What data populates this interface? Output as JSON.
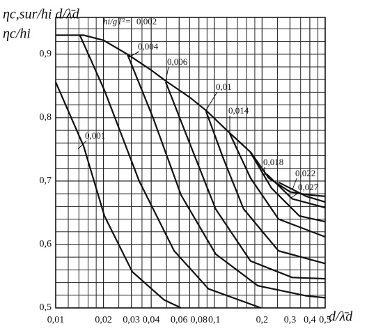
{
  "chart_data": {
    "type": "line",
    "y_label_top": "ηc,sur/hi d/λ̄d",
    "y_label": "ηc/hi",
    "param_label": "hi/gT²=",
    "x_label": "d/λ̄d",
    "log_x": true,
    "grid": true,
    "color": "#111111",
    "xlim": [
      0.01,
      0.5
    ],
    "ylim": [
      0.5,
      0.958
    ],
    "xticks": [
      {
        "value": 0.01,
        "label": "0,01"
      },
      {
        "value": 0.02,
        "label": "0,02"
      },
      {
        "value": 0.03,
        "label": "0,03"
      },
      {
        "value": 0.04,
        "label": "0,04"
      },
      {
        "value": 0.06,
        "label": "0,06"
      },
      {
        "value": 0.08,
        "label": "0,08"
      },
      {
        "value": 0.1,
        "label": "0,1"
      },
      {
        "value": 0.2,
        "label": "0,2"
      },
      {
        "value": 0.3,
        "label": "0,3"
      },
      {
        "value": 0.4,
        "label": "0,4"
      },
      {
        "value": 0.5,
        "label": "0,5"
      }
    ],
    "yticks": [
      {
        "value": 0.5,
        "label": "0,5"
      },
      {
        "value": 0.6,
        "label": "0,6"
      },
      {
        "value": 0.7,
        "label": "0,7"
      },
      {
        "value": 0.8,
        "label": "0,8"
      },
      {
        "value": 0.9,
        "label": "0,9"
      }
    ],
    "xgrid": [
      0.012,
      0.014,
      0.016,
      0.018,
      0.025,
      0.035,
      0.05,
      0.07,
      0.09,
      0.12,
      0.14,
      0.16,
      0.18,
      0.25,
      0.35,
      0.45
    ],
    "ygrid": [
      0.52,
      0.54,
      0.56,
      0.58,
      0.62,
      0.64,
      0.66,
      0.68,
      0.72,
      0.74,
      0.76,
      0.78,
      0.82,
      0.84,
      0.86,
      0.88,
      0.92,
      0.94
    ],
    "envelope": {
      "x": [
        0.01,
        0.015,
        0.02,
        0.0283,
        0.04,
        0.05,
        0.07,
        0.09,
        0.12,
        0.17,
        0.22,
        0.3,
        0.4,
        0.5
      ],
      "values": [
        0.93,
        0.93,
        0.922,
        0.9,
        0.875,
        0.857,
        0.832,
        0.81,
        0.78,
        0.745,
        0.705,
        0.683,
        0.678,
        0.676
      ]
    },
    "series": [
      {
        "name": "0,001",
        "x": [
          0.01,
          0.015,
          0.0203,
          0.0304,
          0.048,
          0.0617
        ],
        "values": [
          0.856,
          0.755,
          0.645,
          0.557,
          0.513,
          0.5
        ]
      },
      {
        "name": "0,002",
        "x": [
          0.0142,
          0.0203,
          0.0336,
          0.0558,
          0.092,
          0.197
        ],
        "values": [
          0.93,
          0.843,
          0.7,
          0.59,
          0.53,
          0.5
        ]
      },
      {
        "name": "0,004",
        "x": [
          0.0283,
          0.0412,
          0.0617,
          0.102,
          0.188,
          0.38,
          0.5
        ],
        "values": [
          0.9,
          0.799,
          0.678,
          0.585,
          0.535,
          0.519,
          0.516
        ]
      },
      {
        "name": "0,006",
        "x": [
          0.0494,
          0.0683,
          0.102,
          0.169,
          0.31,
          0.5
        ],
        "values": [
          0.856,
          0.766,
          0.656,
          0.574,
          0.548,
          0.546
        ]
      },
      {
        "name": "0,01",
        "x": [
          0.0887,
          0.113,
          0.153,
          0.254,
          0.5
        ],
        "values": [
          0.81,
          0.738,
          0.656,
          0.59,
          0.57
        ]
      },
      {
        "name": "0,014",
        "x": [
          0.125,
          0.169,
          0.254,
          0.5
        ],
        "values": [
          0.775,
          0.705,
          0.64,
          0.612
        ]
      },
      {
        "name": "0,018",
        "x": [
          0.169,
          0.229,
          0.344,
          0.5
        ],
        "values": [
          0.745,
          0.689,
          0.645,
          0.636
        ]
      },
      {
        "name": "0,022",
        "x": [
          0.214,
          0.31,
          0.5
        ],
        "values": [
          0.711,
          0.672,
          0.658
        ]
      },
      {
        "name": "0,027",
        "x": [
          0.254,
          0.38,
          0.5
        ],
        "values": [
          0.698,
          0.676,
          0.667
        ]
      }
    ]
  }
}
